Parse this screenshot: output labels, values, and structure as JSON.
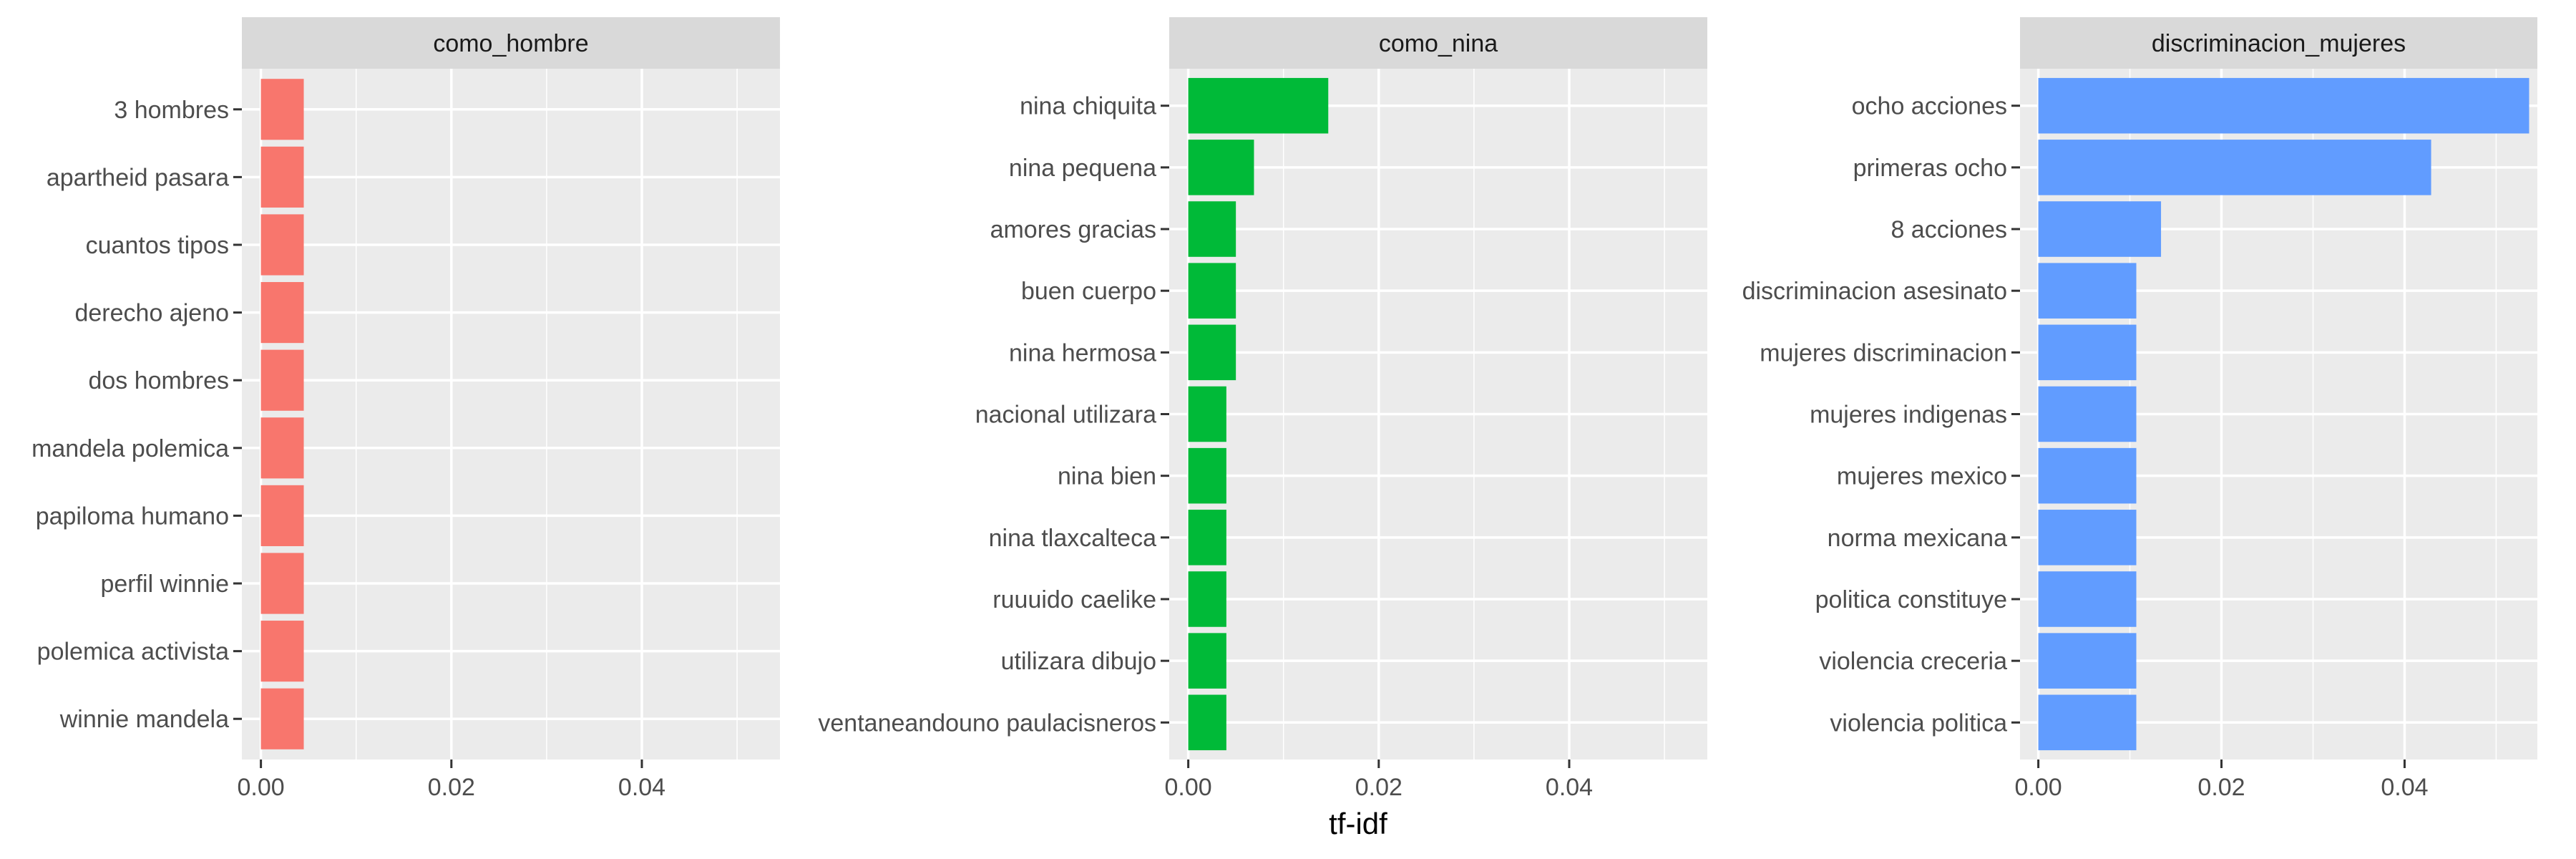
{
  "chart_data": {
    "type": "bar",
    "orientation": "horizontal",
    "layout": "faceted",
    "xlabel": "tf-idf",
    "xlim": [
      -0.002,
      0.0545
    ],
    "xticks": [
      0,
      0.02,
      0.04
    ],
    "xtick_labels": [
      "0.00",
      "0.02",
      "0.04"
    ],
    "grid": true,
    "legend": "none",
    "panels": [
      {
        "title": "como_hombre",
        "color": "#F8766D",
        "categories": [
          "3 hombres",
          "apartheid pasara",
          "cuantos tipos",
          "derecho ajeno",
          "dos hombres",
          "mandela polemica",
          "papiloma humano",
          "perfil winnie",
          "polemica activista",
          "winnie mandela"
        ],
        "values": [
          0.0045,
          0.0045,
          0.0045,
          0.0045,
          0.0045,
          0.0045,
          0.0045,
          0.0045,
          0.0045,
          0.0045
        ]
      },
      {
        "title": "como_nina",
        "color": "#00BA38",
        "categories": [
          "nina chiquita",
          "nina pequena",
          "amores gracias",
          "buen cuerpo",
          "nina hermosa",
          "nacional utilizara",
          "nina bien",
          "nina tlaxcalteca",
          "ruuuido caelike",
          "utilizara dibujo",
          "ventaneandouno paulacisneros"
        ],
        "values": [
          0.0147,
          0.0069,
          0.005,
          0.005,
          0.005,
          0.004,
          0.004,
          0.004,
          0.004,
          0.004,
          0.004
        ]
      },
      {
        "title": "discriminacion_mujeres",
        "color": "#619CFF",
        "categories": [
          "ocho acciones",
          "primeras ocho",
          "8 acciones",
          "discriminacion asesinato",
          "mujeres discriminacion",
          "mujeres indigenas",
          "mujeres mexico",
          "norma mexicana",
          "politica constituye",
          "violencia creceria",
          "violencia politica"
        ],
        "values": [
          0.0536,
          0.0429,
          0.0134,
          0.0107,
          0.0107,
          0.0107,
          0.0107,
          0.0107,
          0.0107,
          0.0107,
          0.0107
        ]
      }
    ]
  }
}
